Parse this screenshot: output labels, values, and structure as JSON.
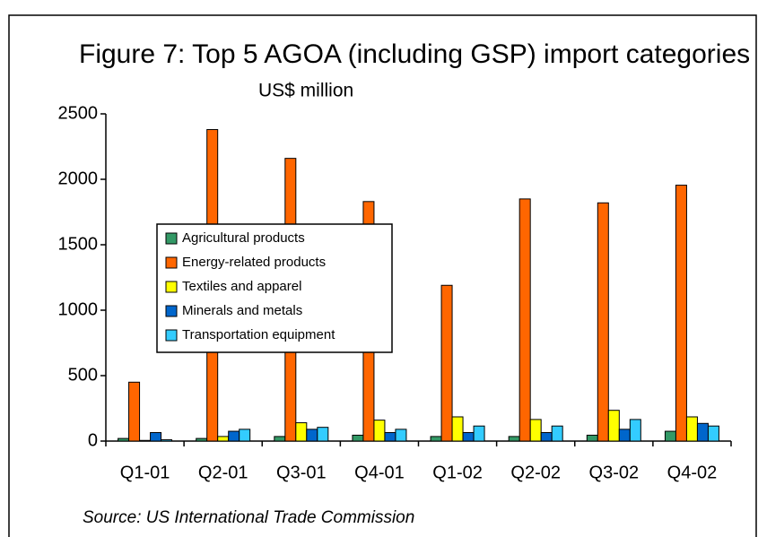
{
  "chart_data": {
    "type": "bar",
    "title": "Figure 7: Top 5 AGOA (including GSP) import categories -",
    "subtitle": "US$ million",
    "source": "Source: US International Trade Commission",
    "categories": [
      "Q1-01",
      "Q2-01",
      "Q3-01",
      "Q4-01",
      "Q1-02",
      "Q2-02",
      "Q3-02",
      "Q4-02"
    ],
    "series": [
      {
        "name": "Agricultural products",
        "color": "#339966",
        "values": [
          20,
          20,
          35,
          45,
          35,
          35,
          45,
          75
        ]
      },
      {
        "name": "Energy-related products",
        "color": "#ff6600",
        "values": [
          450,
          2380,
          2160,
          1830,
          1190,
          1850,
          1820,
          1955
        ]
      },
      {
        "name": "Textiles and apparel",
        "color": "#ffff00",
        "values": [
          5,
          35,
          140,
          160,
          185,
          165,
          235,
          185
        ]
      },
      {
        "name": "Minerals and metals",
        "color": "#0066cc",
        "values": [
          65,
          75,
          90,
          65,
          65,
          65,
          90,
          135
        ]
      },
      {
        "name": "Transportation equipment",
        "color": "#33ccff",
        "values": [
          10,
          90,
          105,
          90,
          115,
          115,
          165,
          115
        ]
      }
    ],
    "ylim": [
      0,
      2500
    ],
    "yticks": [
      0,
      500,
      1000,
      1500,
      2000,
      2500
    ],
    "grid": false,
    "legend": "center-left"
  }
}
